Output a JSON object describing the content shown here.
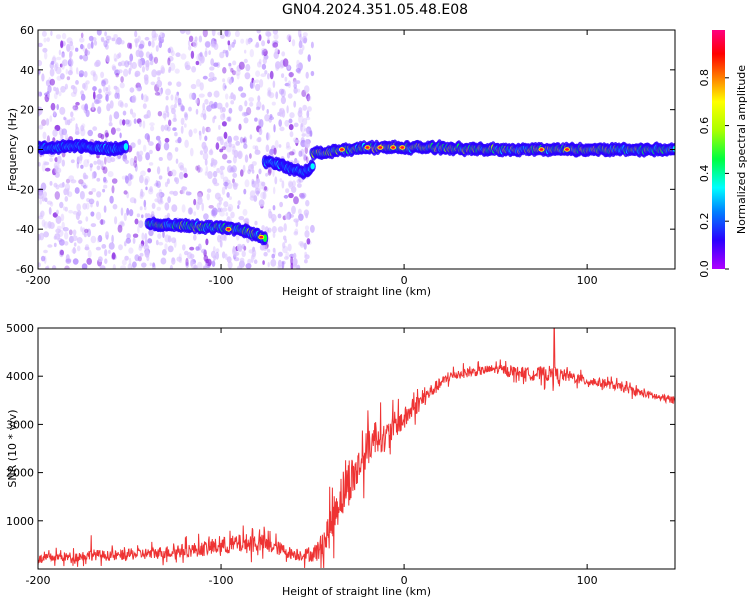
{
  "title": "GN04.2024.351.05.48.E08",
  "chart_data": [
    {
      "type": "heatmap",
      "title": "GN04.2024.351.05.48.E08",
      "xlabel": "Height of straight line (km)",
      "ylabel": "Frequency (Hz)",
      "xlim": [
        -200,
        148
      ],
      "ylim": [
        -60,
        60
      ],
      "xticks": [
        -200,
        -100,
        0,
        100
      ],
      "yticks": [
        -60,
        -40,
        -20,
        0,
        20,
        40,
        60
      ],
      "colorbar": {
        "label": "Normalized spectral amplitude",
        "range": [
          0,
          1
        ],
        "ticks": [
          "0.0",
          "0.2",
          "0.4",
          "0.6",
          "0.8"
        ],
        "colormap": [
          "#b000ff",
          "#2a00ff",
          "#0080ff",
          "#00ffff",
          "#00ff40",
          "#aaff00",
          "#ffff00",
          "#ff8000",
          "#ff0000",
          "#ff0080"
        ]
      },
      "ridges": [
        {
          "x": [
            -200,
            -190,
            -180,
            -170,
            -160,
            -152
          ],
          "y": [
            1,
            1,
            2,
            1,
            0,
            1
          ],
          "amplitude": 0.3
        },
        {
          "x": [
            -140,
            -130,
            -120,
            -110,
            -100,
            -90,
            -80,
            -76
          ],
          "y": [
            -37,
            -38,
            -38,
            -39,
            -39,
            -40,
            -43,
            -45
          ],
          "amplitude": 0.45
        },
        {
          "x": [
            -76,
            -70,
            -60,
            -55,
            -50
          ],
          "y": [
            -6,
            -7,
            -10,
            -12,
            -8
          ],
          "amplitude": 0.3
        },
        {
          "x": [
            -50,
            -40,
            -30,
            -20,
            -10,
            0,
            20,
            40,
            60,
            80,
            100,
            120,
            148
          ],
          "y": [
            -2,
            -1,
            0,
            1,
            1,
            1,
            1,
            0,
            0,
            0,
            0,
            0,
            0
          ],
          "amplitude": 0.55
        }
      ],
      "peaks": [
        {
          "x": -34,
          "y": 0
        },
        {
          "x": -20,
          "y": 1
        },
        {
          "x": -13,
          "y": 1
        },
        {
          "x": -6,
          "y": 1
        },
        {
          "x": -1,
          "y": 1
        },
        {
          "x": 75,
          "y": 0
        },
        {
          "x": 89,
          "y": 0
        },
        {
          "x": -78,
          "y": -44
        },
        {
          "x": -96,
          "y": -40
        }
      ],
      "grid": false
    },
    {
      "type": "line",
      "xlabel": "Height of straight line (km)",
      "ylabel": "SNR (10 * v/v)",
      "xlim": [
        -200,
        148
      ],
      "ylim": [
        0,
        5000
      ],
      "xticks": [
        -200,
        -100,
        0,
        100
      ],
      "yticks": [
        1000,
        2000,
        3000,
        4000,
        5000
      ],
      "series": [
        {
          "color": "#ee3333",
          "x": [
            -200,
            -190,
            -180,
            -170,
            -160,
            -150,
            -140,
            -130,
            -120,
            -110,
            -100,
            -90,
            -80,
            -70,
            -60,
            -50,
            -45,
            -40,
            -35,
            -30,
            -25,
            -20,
            -15,
            -10,
            -5,
            0,
            5,
            10,
            15,
            20,
            25,
            30,
            40,
            50,
            60,
            70,
            80,
            90,
            100,
            110,
            120,
            130,
            140,
            148
          ],
          "y": [
            200,
            250,
            250,
            300,
            270,
            300,
            320,
            350,
            380,
            420,
            480,
            520,
            550,
            450,
            300,
            300,
            450,
            900,
            1500,
            1800,
            2100,
            2500,
            2800,
            2700,
            3000,
            3100,
            3350,
            3500,
            3700,
            3850,
            4000,
            4050,
            4100,
            4150,
            4100,
            4050,
            4050,
            4000,
            3900,
            3850,
            3750,
            3650,
            3550,
            3500
          ],
          "noise": [
            150,
            160,
            170,
            190,
            170,
            190,
            200,
            220,
            240,
            260,
            300,
            330,
            350,
            250,
            200,
            250,
            500,
            700,
            800,
            800,
            700,
            650,
            600,
            500,
            450,
            400,
            350,
            300,
            250,
            200,
            180,
            170,
            160,
            160,
            180,
            220,
            280,
            200,
            170,
            150,
            140,
            140,
            140,
            130
          ],
          "spikes": [
            {
              "x": 82,
              "y": 5050
            },
            {
              "x": -171,
              "y": 700
            }
          ]
        }
      ],
      "grid": false
    }
  ]
}
